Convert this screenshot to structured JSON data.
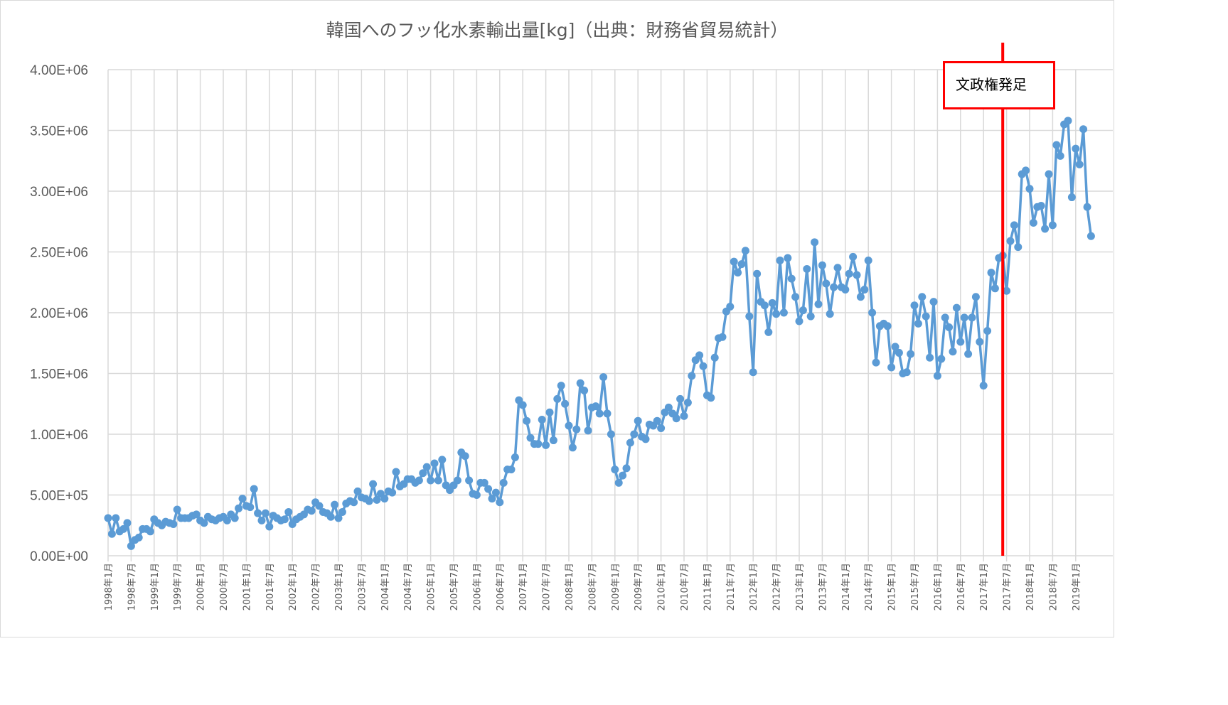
{
  "chart_data": {
    "type": "line",
    "title": "韓国へのフッ化水素輸出量[kg]（出典：財務省貿易統計）",
    "xlabel": "",
    "ylabel": "",
    "ylim": [
      0,
      4000000
    ],
    "y_ticks": [
      "0.00E+00",
      "5.00E+05",
      "1.00E+06",
      "1.50E+06",
      "2.00E+06",
      "2.50E+06",
      "3.00E+06",
      "3.50E+06",
      "4.00E+06"
    ],
    "x_start": "1998年1月",
    "x_frequency": "monthly",
    "x_tick_labels": [
      "1998年1月",
      "1998年7月",
      "1999年1月",
      "1999年7月",
      "2000年1月",
      "2000年7月",
      "2001年1月",
      "2001年7月",
      "2002年1月",
      "2002年7月",
      "2003年1月",
      "2003年7月",
      "2004年1月",
      "2004年7月",
      "2005年1月",
      "2005年7月",
      "2006年1月",
      "2006年7月",
      "2007年1月",
      "2007年7月",
      "2008年1月",
      "2008年7月",
      "2009年1月",
      "2009年7月",
      "2010年1月",
      "2010年7月",
      "2011年1月",
      "2011年7月",
      "2012年1月",
      "2012年7月",
      "2013年1月",
      "2013年7月",
      "2014年1月",
      "2014年7月",
      "2015年1月",
      "2015年7月",
      "2016年1月",
      "2016年7月",
      "2017年1月",
      "2017年7月",
      "2018年1月",
      "2018年7月",
      "2019年1月"
    ],
    "grid": true,
    "legend": "none",
    "series": [
      {
        "name": "韓国へのフッ化水素輸出量",
        "color": "#5b9bd5",
        "values": [
          310000.0,
          180000.0,
          310000.0,
          200000.0,
          220000.0,
          270000.0,
          80000.0,
          130000.0,
          150000.0,
          220000.0,
          220000.0,
          200000.0,
          300000.0,
          270000.0,
          250000.0,
          280000.0,
          270000.0,
          260000.0,
          380000.0,
          310000.0,
          310000.0,
          310000.0,
          330000.0,
          340000.0,
          290000.0,
          270000.0,
          320000.0,
          300000.0,
          290000.0,
          310000.0,
          320000.0,
          290000.0,
          340000.0,
          310000.0,
          390000.0,
          470000.0,
          410000.0,
          400000.0,
          550000.0,
          350000.0,
          290000.0,
          350000.0,
          240000.0,
          330000.0,
          310000.0,
          290000.0,
          300000.0,
          360000.0,
          260000.0,
          300000.0,
          320000.0,
          340000.0,
          380000.0,
          370000.0,
          440000.0,
          410000.0,
          360000.0,
          350000.0,
          320000.0,
          420000.0,
          310000.0,
          360000.0,
          430000.0,
          450000.0,
          440000.0,
          530000.0,
          480000.0,
          470000.0,
          450000.0,
          590000.0,
          460000.0,
          510000.0,
          470000.0,
          530000.0,
          520000.0,
          690000.0,
          570000.0,
          590000.0,
          630000.0,
          630000.0,
          600000.0,
          620000.0,
          680000.0,
          730000.0,
          620000.0,
          760000.0,
          620000.0,
          790000.0,
          580000.0,
          540000.0,
          580000.0,
          620000.0,
          850000.0,
          820000.0,
          620000.0,
          510000.0,
          500000.0,
          600000.0,
          600000.0,
          550000.0,
          470000.0,
          520000.0,
          440000.0,
          600000.0,
          710000.0,
          710000.0,
          810000.0,
          1280000.0,
          1240000.0,
          1110000.0,
          970000.0,
          920000.0,
          920000.0,
          1120000.0,
          910000.0,
          1180000.0,
          950000.0,
          1290000.0,
          1400000.0,
          1250000.0,
          1070000.0,
          890000.0,
          1040000.0,
          1420000.0,
          1360000.0,
          1030000.0,
          1220000.0,
          1230000.0,
          1170000.0,
          1470000.0,
          1170000.0,
          1000000.0,
          710000.0,
          600000.0,
          660000.0,
          720000.0,
          930000.0,
          1000000.0,
          1110000.0,
          980000.0,
          960000.0,
          1080000.0,
          1070000.0,
          1110000.0,
          1050000.0,
          1180000.0,
          1220000.0,
          1170000.0,
          1130000.0,
          1290000.0,
          1150000.0,
          1260000.0,
          1480000.0,
          1610000.0,
          1650000.0,
          1560000.0,
          1320000.0,
          1300000.0,
          1630000.0,
          1790000.0,
          1800000.0,
          2010000.0,
          2050000.0,
          2420000.0,
          2330000.0,
          2400000.0,
          2510000.0,
          1970000.0,
          1510000.0,
          2320000.0,
          2090000.0,
          2060000.0,
          1840000.0,
          2080000.0,
          1990000.0,
          2430000.0,
          2000000.0,
          2450000.0,
          2280000.0,
          2130000.0,
          1930000.0,
          2020000.0,
          2360000.0,
          1970000.0,
          2580000.0,
          2070000.0,
          2390000.0,
          2240000.0,
          1990000.0,
          2210000.0,
          2370000.0,
          2210000.0,
          2190000.0,
          2320000.0,
          2460000.0,
          2310000.0,
          2130000.0,
          2190000.0,
          2430000.0,
          2000000.0,
          1590000.0,
          1890000.0,
          1910000.0,
          1890000.0,
          1550000.0,
          1720000.0,
          1670000.0,
          1500000.0,
          1510000.0,
          1660000.0,
          2060000.0,
          1910000.0,
          2130000.0,
          1970000.0,
          1630000.0,
          2090000.0,
          1480000.0,
          1620000.0,
          1960000.0,
          1880000.0,
          1680000.0,
          2040000.0,
          1760000.0,
          1960000.0,
          1660000.0,
          1960000.0,
          2130000.0,
          1760000.0,
          1400000.0,
          1850000.0,
          2330000.0,
          2200000.0,
          2450000.0,
          2470000.0,
          2180000.0,
          2590000.0,
          2720000.0,
          2540000.0,
          3140000.0,
          3170000.0,
          3020000.0,
          2740000.0,
          2870000.0,
          2880000.0,
          2690000.0,
          3140000.0,
          2720000.0,
          3380000.0,
          3290000.0,
          3550000.0,
          3580000.0,
          2950000.0,
          3350000.0,
          3220000.0,
          3510000.0,
          2870000.0,
          2630000.0
        ]
      }
    ],
    "annotations": [
      {
        "text": "文政権発足",
        "at_month_index": 233,
        "marker_color": "#ff0000"
      }
    ]
  }
}
